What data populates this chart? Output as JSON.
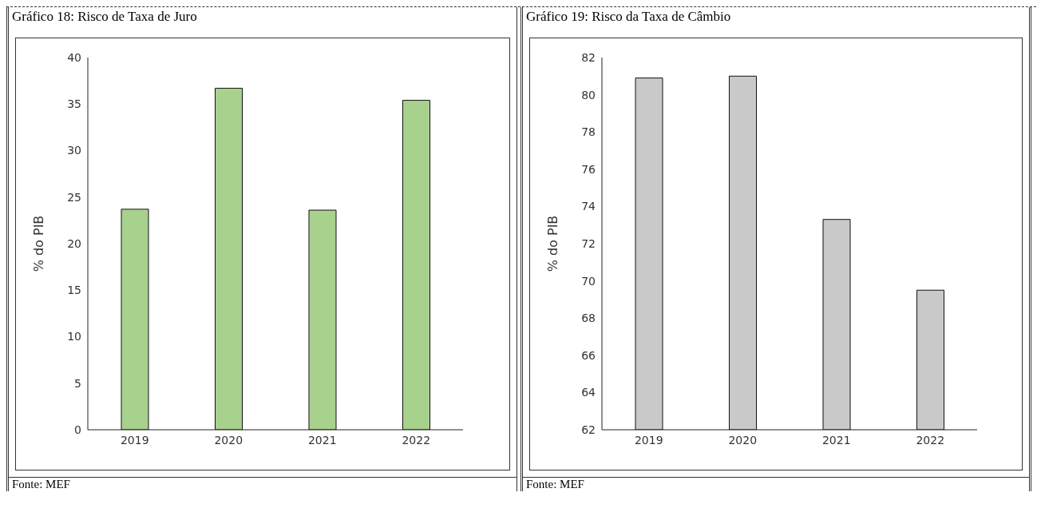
{
  "chart_data": [
    {
      "type": "bar",
      "title": "Gráfico 18: Risco de Taxa de Juro",
      "ylabel": "% do PIB",
      "categories": [
        "2019",
        "2020",
        "2021",
        "2022"
      ],
      "values": [
        23.7,
        36.7,
        23.6,
        35.4
      ],
      "color": "#a9d18e",
      "ylim": [
        0,
        40
      ],
      "yticks": [
        0,
        5,
        10,
        15,
        20,
        25,
        30,
        35,
        40
      ],
      "grid": false,
      "annotations": [
        "Fonte: MEF"
      ]
    },
    {
      "type": "bar",
      "title": "Gráfico 19: Risco da Taxa de Câmbio",
      "ylabel": "% do PIB",
      "categories": [
        "2019",
        "2020",
        "2021",
        "2022"
      ],
      "values": [
        80.9,
        81.0,
        73.3,
        69.5
      ],
      "color": "#c9c9c9",
      "ylim": [
        62,
        82
      ],
      "yticks": [
        62,
        64,
        66,
        68,
        70,
        72,
        74,
        76,
        78,
        80,
        82
      ],
      "grid": false,
      "annotations": [
        "Fonte: MEF"
      ]
    }
  ]
}
